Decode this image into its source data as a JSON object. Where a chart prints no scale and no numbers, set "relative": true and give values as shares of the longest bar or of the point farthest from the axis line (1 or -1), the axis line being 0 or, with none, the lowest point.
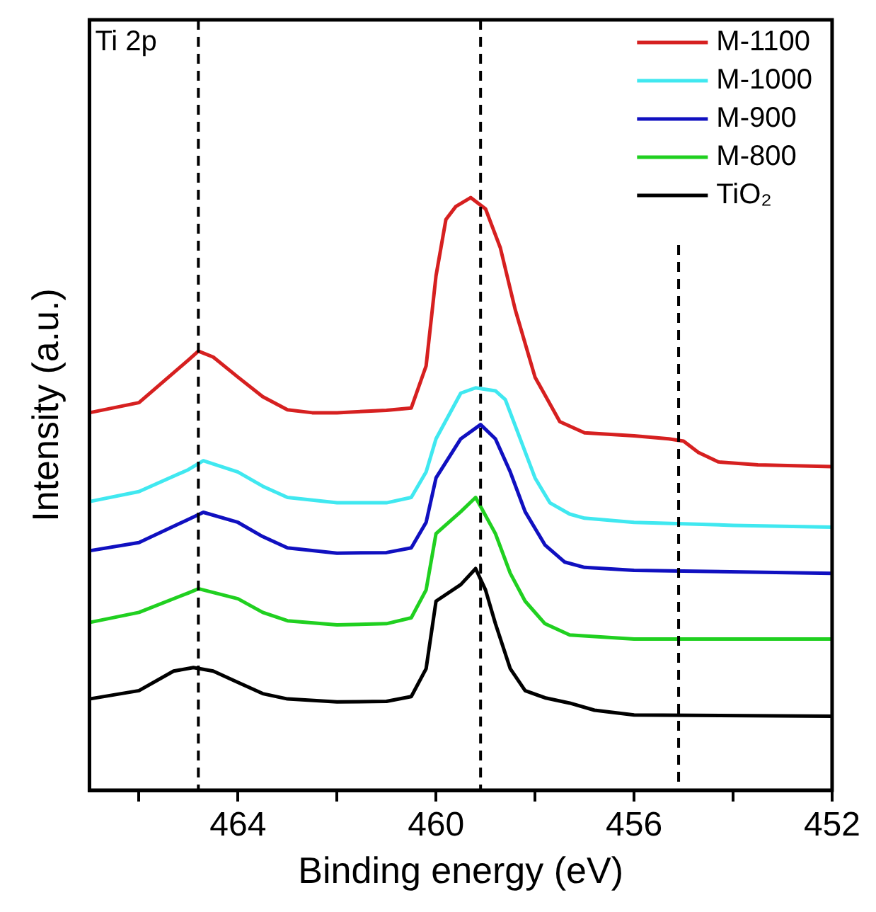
{
  "chart_data": {
    "type": "line",
    "xlabel": "Binding energy (eV)",
    "ylabel": "Intensity (a.u.)",
    "annotations": [
      "Ti 2p"
    ],
    "xlim": [
      467,
      452
    ],
    "xticks": [
      {
        "value": 466,
        "label": null
      },
      464,
      {
        "value": 462,
        "label": null
      },
      460,
      {
        "value": 458,
        "label": null
      },
      456,
      {
        "value": 454,
        "label": null
      },
      452
    ],
    "relative": true,
    "grid": false,
    "legend": "top right",
    "marker": "none",
    "line_style": "solid",
    "ref_lines": [
      {
        "axis": "x",
        "value": 464.8,
        "color": "#000000",
        "line_style": "dashed"
      },
      {
        "axis": "x",
        "value": 459.1,
        "color": "#000000",
        "line_style": "dashed"
      },
      {
        "axis": "x",
        "value": 455.1,
        "color": "#000000",
        "line_style": "dashed"
      }
    ],
    "series": [
      {
        "name": "M-1100",
        "color": "#d62020",
        "x": [
          467,
          466,
          465,
          464.8,
          464.5,
          464,
          463.5,
          463,
          462.5,
          462,
          461,
          460.5,
          460.2,
          460,
          459.8,
          459.6,
          459.3,
          459.0,
          458.7,
          458.4,
          458.0,
          457.5,
          457,
          456,
          455.3,
          455,
          454.7,
          454.3,
          453.5,
          452
        ],
        "values": [
          0.637,
          0.654,
          0.726,
          0.741,
          0.731,
          0.697,
          0.664,
          0.642,
          0.637,
          0.637,
          0.641,
          0.645,
          0.716,
          0.868,
          0.963,
          0.985,
          1.0,
          0.981,
          0.915,
          0.811,
          0.697,
          0.622,
          0.603,
          0.598,
          0.593,
          0.589,
          0.57,
          0.554,
          0.549,
          0.546
        ]
      },
      {
        "name": "M-1000",
        "color": "#40e8f0",
        "x": [
          467,
          466,
          465,
          464.7,
          464,
          463.5,
          463,
          462,
          461,
          460.5,
          460.2,
          460,
          459.5,
          459.2,
          458.8,
          458.6,
          458.3,
          458,
          457.7,
          457.3,
          457,
          456,
          454,
          452
        ],
        "values": [
          0.487,
          0.504,
          0.541,
          0.556,
          0.537,
          0.513,
          0.494,
          0.485,
          0.485,
          0.494,
          0.537,
          0.593,
          0.67,
          0.679,
          0.674,
          0.659,
          0.593,
          0.527,
          0.485,
          0.466,
          0.459,
          0.452,
          0.447,
          0.444
        ]
      },
      {
        "name": "M-900",
        "color": "#1010c0",
        "x": [
          467,
          466,
          465,
          464.7,
          464,
          463.5,
          463,
          462,
          461,
          460.5,
          460.2,
          460,
          459.5,
          459.1,
          458.8,
          458.5,
          458.2,
          457.8,
          457.4,
          457,
          456,
          452
        ],
        "values": [
          0.404,
          0.418,
          0.457,
          0.469,
          0.452,
          0.428,
          0.409,
          0.4,
          0.401,
          0.409,
          0.452,
          0.527,
          0.593,
          0.617,
          0.593,
          0.537,
          0.47,
          0.414,
          0.385,
          0.376,
          0.371,
          0.366
        ]
      },
      {
        "name": "M-800",
        "color": "#20d020",
        "x": [
          467,
          466,
          465,
          464.8,
          464,
          463.5,
          463,
          462,
          461,
          460.5,
          460.2,
          460,
          459.5,
          459.2,
          458.8,
          458.5,
          458.2,
          457.8,
          457.3,
          456,
          452
        ],
        "values": [
          0.283,
          0.3,
          0.333,
          0.34,
          0.323,
          0.3,
          0.286,
          0.279,
          0.281,
          0.291,
          0.338,
          0.433,
          0.47,
          0.494,
          0.433,
          0.366,
          0.319,
          0.281,
          0.262,
          0.255,
          0.255
        ]
      },
      {
        "name": "TiO₂",
        "color": "#000000",
        "x": [
          467,
          466,
          465.3,
          464.9,
          464.5,
          464,
          463.5,
          463,
          462,
          461,
          460.5,
          460.2,
          460,
          459.5,
          459.2,
          459.0,
          458.8,
          458.5,
          458.2,
          457.8,
          457.3,
          456.8,
          456,
          452
        ],
        "values": [
          0.154,
          0.168,
          0.201,
          0.207,
          0.201,
          0.182,
          0.163,
          0.154,
          0.149,
          0.15,
          0.158,
          0.205,
          0.319,
          0.347,
          0.374,
          0.338,
          0.281,
          0.205,
          0.168,
          0.156,
          0.147,
          0.135,
          0.127,
          0.125
        ]
      }
    ]
  }
}
